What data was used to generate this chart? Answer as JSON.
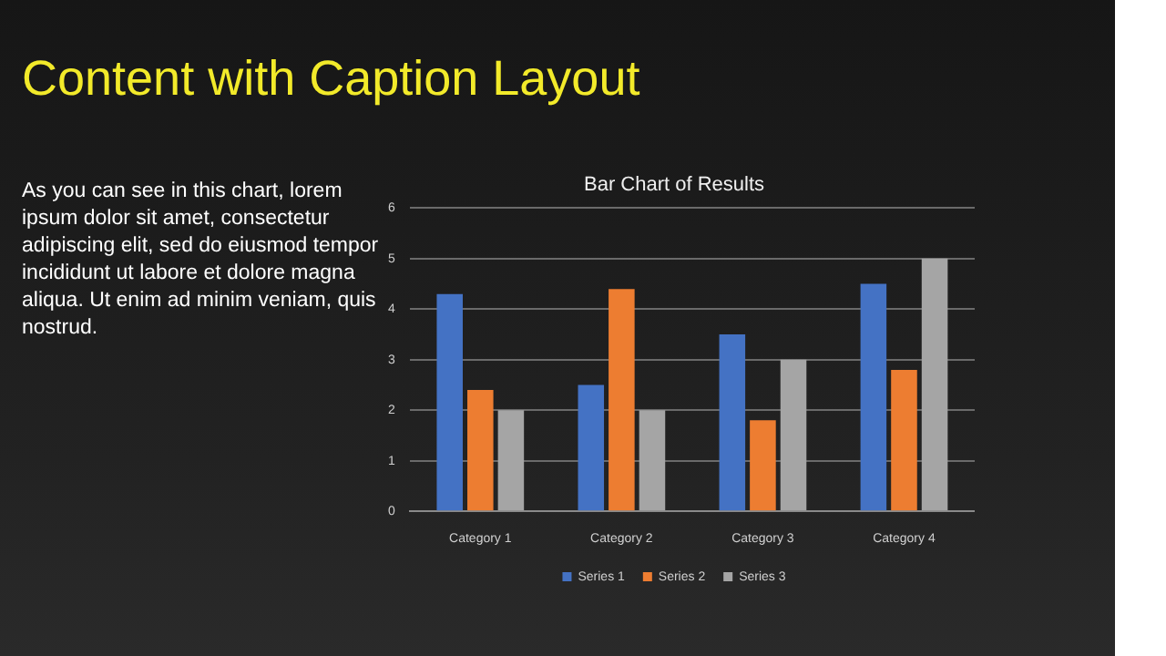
{
  "chart_data": {
    "type": "bar",
    "title": "Bar Chart of Results",
    "categories": [
      "Category 1",
      "Category 2",
      "Category 3",
      "Category 4"
    ],
    "series": [
      {
        "name": "Series 1",
        "color": "#4472c4",
        "values": [
          4.3,
          2.5,
          3.5,
          4.5
        ]
      },
      {
        "name": "Series 2",
        "color": "#ed7d31",
        "values": [
          2.4,
          4.4,
          1.8,
          2.8
        ]
      },
      {
        "name": "Series 3",
        "color": "#a5a5a5",
        "values": [
          2,
          2,
          3,
          5
        ]
      }
    ],
    "ylim": [
      0,
      6
    ],
    "yticks": [
      0,
      1,
      2,
      3,
      4,
      5,
      6
    ],
    "grid": "y",
    "legend": "bottom",
    "annotations": [
      "Content with Caption Layout",
      "As you can see in this chart, lorem ipsum dolor sit amet, consectetur adipiscing elit, sed do eiusmod tempor incididunt ut labore et dolore magna aliqua. Ut enim ad minim veniam, quis nostrud."
    ]
  }
}
